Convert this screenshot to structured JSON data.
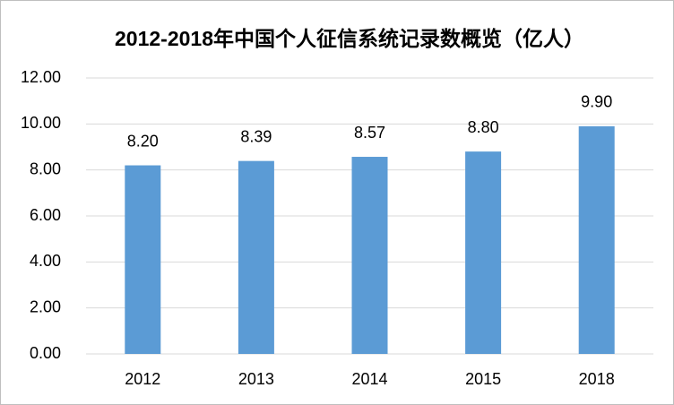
{
  "chart_data": {
    "type": "bar",
    "title": "2012-2018年中国个人征信系统记录数概览（亿人）",
    "categories": [
      "2012",
      "2013",
      "2014",
      "2015",
      "2018"
    ],
    "values": [
      8.2,
      8.39,
      8.57,
      8.8,
      9.9
    ],
    "value_labels": [
      "8.20",
      "8.39",
      "8.57",
      "8.80",
      "9.90"
    ],
    "color": "#5b9bd5",
    "ylim": [
      0,
      12
    ],
    "yticks": [
      {
        "value": 0,
        "label": "0.00"
      },
      {
        "value": 2,
        "label": "2.00"
      },
      {
        "value": 4,
        "label": "4.00"
      },
      {
        "value": 6,
        "label": "6.00"
      },
      {
        "value": 8,
        "label": "8.00"
      },
      {
        "value": 10,
        "label": "10.00"
      },
      {
        "value": 12,
        "label": "12.00"
      }
    ],
    "grid": true
  }
}
